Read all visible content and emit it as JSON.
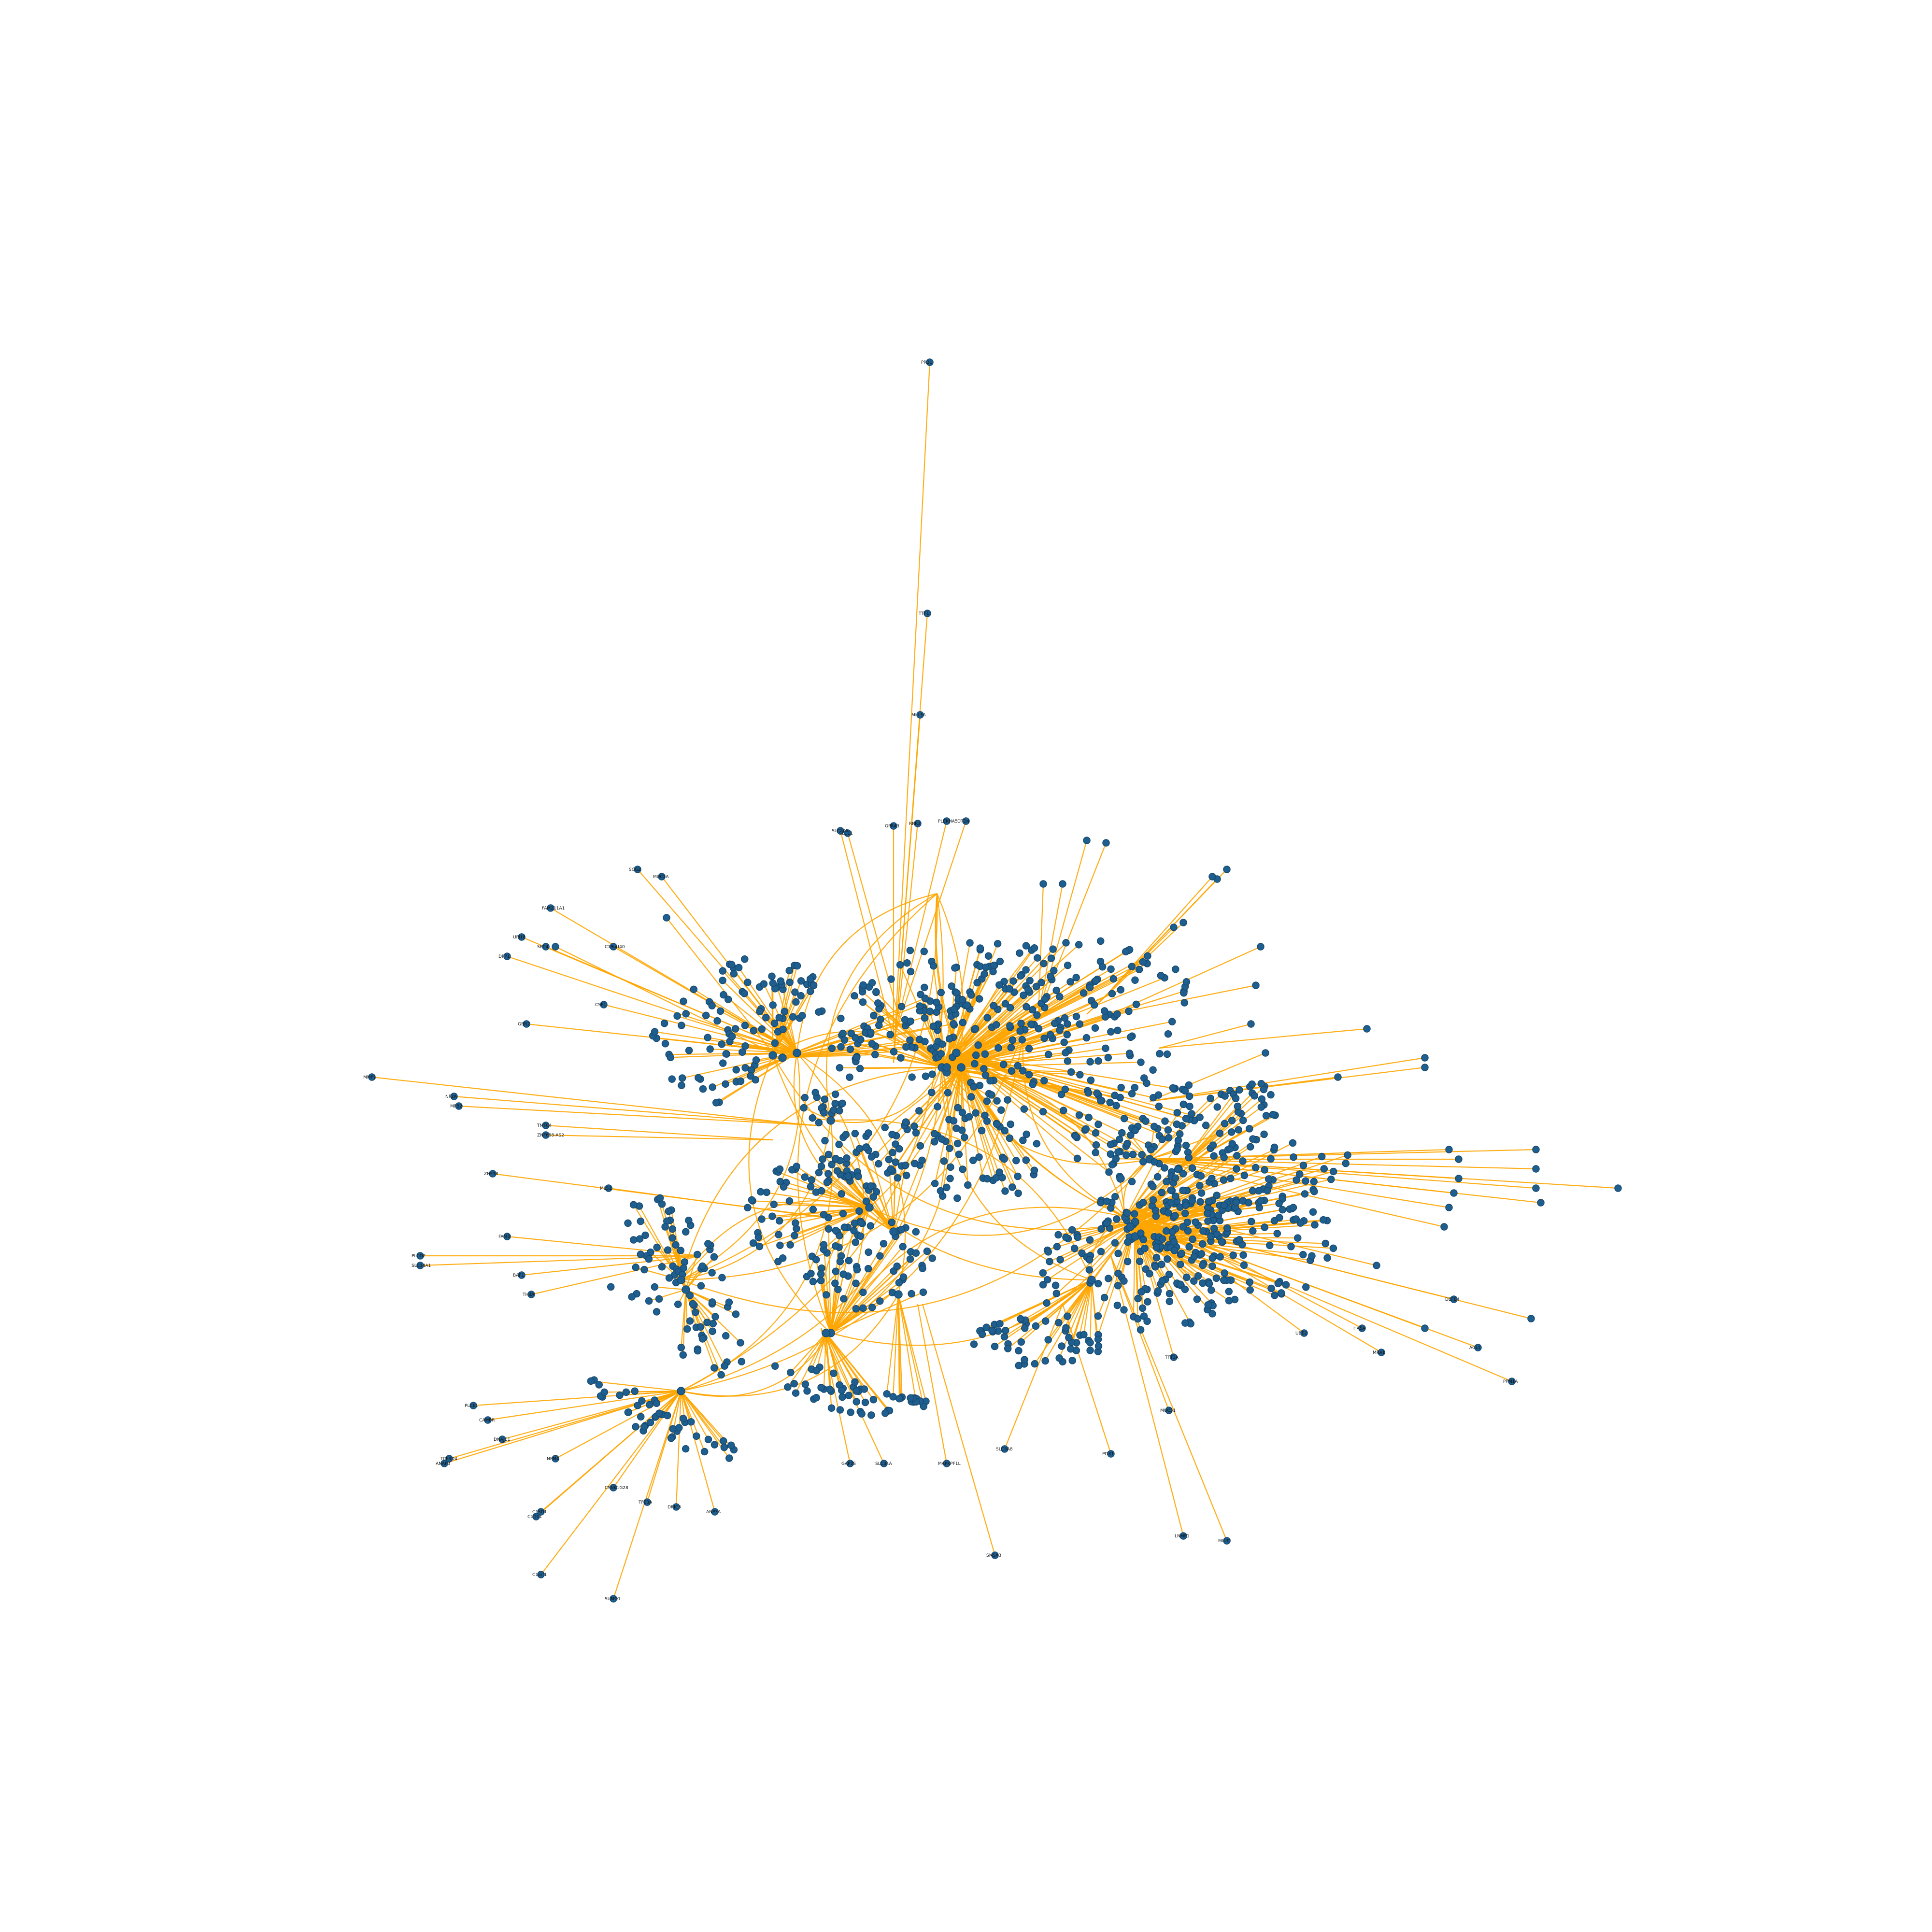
{
  "graph": {
    "node_color": "#1f5f8f",
    "edge_color": "#FFA500",
    "background": "#ffffff",
    "labels": [
      "PR3L",
      "TTF1",
      "MLL3A",
      "SLC2A5",
      "GPR43",
      "PLEKHA5",
      "DTD4",
      "SEC11",
      "RKR3",
      "SCG2",
      "FAM211A1",
      "UPI18",
      "DPP1",
      "SEC4",
      "C19orf40",
      "CSP1",
      "GBR2",
      "MUC2A",
      "MMP1",
      "NF2A",
      "MFB2",
      "TMTC4",
      "ZNF658-AS2",
      "ZNF38",
      "MLS1",
      "PLCD2",
      "SLC34A1",
      "FAM3",
      "BAF1",
      "TH3A",
      "PLCE1",
      "CAMBR",
      "DNAJC1",
      "TCF3D4",
      "ANAP3",
      "NFM4",
      "C1SD1",
      "CSNK1G28",
      "TFE3A",
      "DRIC3",
      "ANP3A",
      "C1D11",
      "C1orf1",
      "SUMO1",
      "GAP3S",
      "SLC34A",
      "MAPKPF1L",
      "SMSX3",
      "SLC5A8",
      "PDX1",
      "LNMP1",
      "MLLT1",
      "MUC51",
      "TFT3A",
      "UBE2",
      "HA5A",
      "MRA1",
      "AGL1",
      "PPM1A",
      "DEFB4"
    ]
  }
}
